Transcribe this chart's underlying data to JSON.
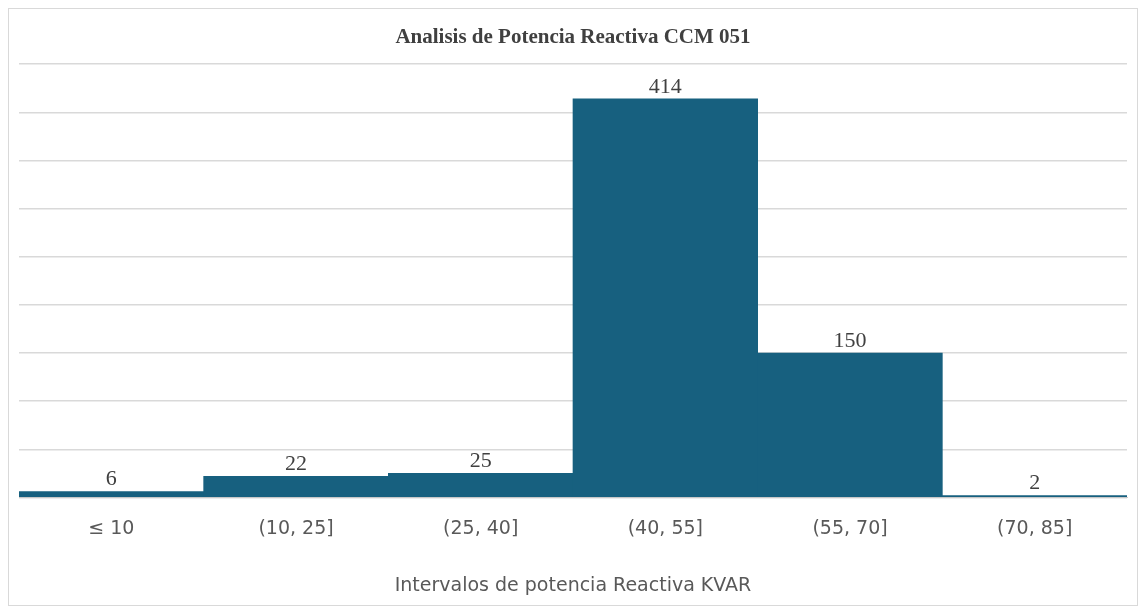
{
  "chart_data": {
    "type": "bar",
    "title": "Analisis de Potencia Reactiva CCM 051",
    "xlabel": "Intervalos de potencia Reactiva KVAR",
    "categories": [
      "≤ 10",
      "(10, 25]",
      "(25, 40]",
      "(40, 55]",
      "(55, 70]",
      "(70, 85]"
    ],
    "values": [
      6,
      22,
      25,
      414,
      150,
      2
    ],
    "color": "#17607f",
    "data_labels": true,
    "ylim": [
      0,
      450
    ],
    "yticks": [
      {
        "value": 0,
        "label": null
      },
      {
        "value": 50,
        "label": null
      },
      {
        "value": 100,
        "label": null
      },
      {
        "value": 150,
        "label": null
      },
      {
        "value": 200,
        "label": null
      },
      {
        "value": 250,
        "label": null
      },
      {
        "value": 300,
        "label": null
      },
      {
        "value": 350,
        "label": null
      },
      {
        "value": 400,
        "label": null
      },
      {
        "value": 450,
        "label": null
      }
    ],
    "grid": "y",
    "tick_labels": "x",
    "legend": false
  }
}
